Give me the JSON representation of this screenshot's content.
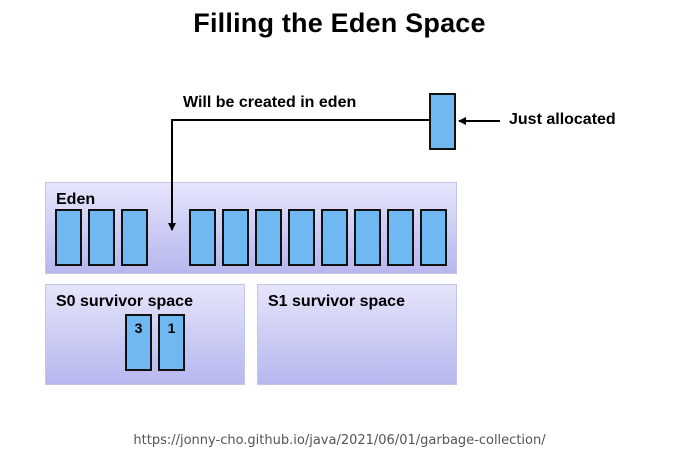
{
  "title": "Filling the Eden Space",
  "eden": {
    "label": "Eden",
    "objects_left": 3,
    "objects_right": 8
  },
  "s0": {
    "label": "S0 survivor space",
    "objects": [
      "3",
      "1"
    ]
  },
  "s1": {
    "label": "S1 survivor space"
  },
  "new_object_label": "Just allocated",
  "eden_arrow_label": "Will be created in eden",
  "source_url": "https://jonny-cho.github.io/java/2021/06/01/garbage-collection/",
  "colors": {
    "object_fill": "#6fb8f2",
    "region_fill": "#d6d6f7"
  }
}
